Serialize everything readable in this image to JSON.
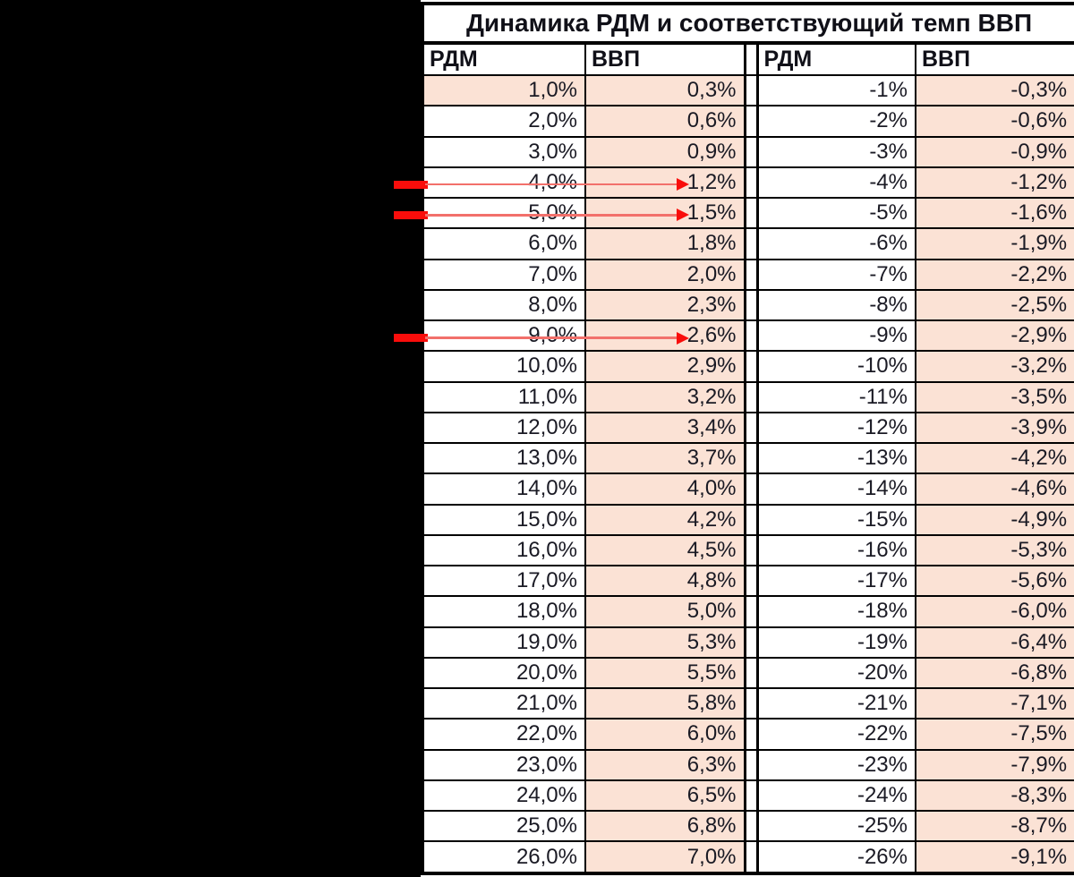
{
  "table": {
    "title": "Динамика РДМ и соответствующий темп ВВП",
    "sections": [
      {
        "name": "positive",
        "headers": [
          "РДМ",
          "ВВП"
        ],
        "highlighted_rdm_row": 1,
        "rows": [
          [
            "1,0%",
            "0,3%"
          ],
          [
            "2,0%",
            "0,6%"
          ],
          [
            "3,0%",
            "0,9%"
          ],
          [
            "4,0%",
            "1,2%"
          ],
          [
            "5,0%",
            "1,5%"
          ],
          [
            "6,0%",
            "1,8%"
          ],
          [
            "7,0%",
            "2,0%"
          ],
          [
            "8,0%",
            "2,3%"
          ],
          [
            "9,0%",
            "2,6%"
          ],
          [
            "10,0%",
            "2,9%"
          ],
          [
            "11,0%",
            "3,2%"
          ],
          [
            "12,0%",
            "3,4%"
          ],
          [
            "13,0%",
            "3,7%"
          ],
          [
            "14,0%",
            "4,0%"
          ],
          [
            "15,0%",
            "4,2%"
          ],
          [
            "16,0%",
            "4,5%"
          ],
          [
            "17,0%",
            "4,8%"
          ],
          [
            "18,0%",
            "5,0%"
          ],
          [
            "19,0%",
            "5,3%"
          ],
          [
            "20,0%",
            "5,5%"
          ],
          [
            "21,0%",
            "5,8%"
          ],
          [
            "22,0%",
            "6,0%"
          ],
          [
            "23,0%",
            "6,3%"
          ],
          [
            "24,0%",
            "6,5%"
          ],
          [
            "25,0%",
            "6,8%"
          ],
          [
            "26,0%",
            "7,0%"
          ]
        ]
      },
      {
        "name": "negative",
        "headers": [
          "РДМ",
          "ВВП"
        ],
        "rows": [
          [
            "-1%",
            "-0,3%"
          ],
          [
            "-2%",
            "-0,6%"
          ],
          [
            "-3%",
            "-0,9%"
          ],
          [
            "-4%",
            "-1,2%"
          ],
          [
            "-5%",
            "-1,6%"
          ],
          [
            "-6%",
            "-1,9%"
          ],
          [
            "-7%",
            "-2,2%"
          ],
          [
            "-8%",
            "-2,5%"
          ],
          [
            "-9%",
            "-2,9%"
          ],
          [
            "-10%",
            "-3,2%"
          ],
          [
            "-11%",
            "-3,5%"
          ],
          [
            "-12%",
            "-3,9%"
          ],
          [
            "-13%",
            "-4,2%"
          ],
          [
            "-14%",
            "-4,6%"
          ],
          [
            "-15%",
            "-4,9%"
          ],
          [
            "-16%",
            "-5,3%"
          ],
          [
            "-17%",
            "-5,6%"
          ],
          [
            "-18%",
            "-6,0%"
          ],
          [
            "-19%",
            "-6,4%"
          ],
          [
            "-20%",
            "-6,8%"
          ],
          [
            "-21%",
            "-7,1%"
          ],
          [
            "-22%",
            "-7,5%"
          ],
          [
            "-23%",
            "-7,9%"
          ],
          [
            "-24%",
            "-8,3%"
          ],
          [
            "-25%",
            "-8,7%"
          ],
          [
            "-26%",
            "-9,1%"
          ]
        ]
      }
    ]
  },
  "annotations": {
    "arrow_rows": [
      4,
      5,
      9
    ],
    "arrow_icon": "red-arrow-right"
  },
  "colors": {
    "cell_fill_peach": "#fbe2d5",
    "border": "#000000",
    "text": "#1a1a24",
    "arrow_red": "#f90d0b",
    "arrow_line_red": "#f2706b",
    "background": "#000000"
  }
}
